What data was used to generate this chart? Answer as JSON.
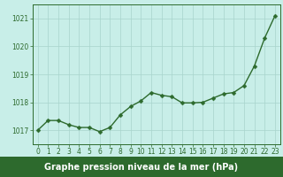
{
  "x": [
    0,
    1,
    2,
    3,
    4,
    5,
    6,
    7,
    8,
    9,
    10,
    11,
    12,
    13,
    14,
    15,
    16,
    17,
    18,
    19,
    20,
    21,
    22,
    23
  ],
  "y": [
    1017.0,
    1017.35,
    1017.35,
    1017.2,
    1017.1,
    1017.1,
    1016.95,
    1017.1,
    1017.55,
    1017.85,
    1018.05,
    1018.35,
    1018.25,
    1018.2,
    1017.98,
    1017.98,
    1018.0,
    1018.15,
    1018.3,
    1018.35,
    1018.6,
    1019.3,
    1020.3,
    1021.1
  ],
  "line_color": "#2d6a2d",
  "marker": "D",
  "marker_size": 2.5,
  "plot_bg_color": "#c8eee8",
  "fig_bg_color": "#c8eee8",
  "grid_color": "#a8d4cc",
  "label_bg_color": "#2d6a2d",
  "label_text_color": "#ffffff",
  "xlabel": "Graphe pression niveau de la mer (hPa)",
  "xlabel_fontsize": 7,
  "ylim": [
    1016.5,
    1021.5
  ],
  "yticks": [
    1017,
    1018,
    1019,
    1020,
    1021
  ],
  "xticks": [
    0,
    1,
    2,
    3,
    4,
    5,
    6,
    7,
    8,
    9,
    10,
    11,
    12,
    13,
    14,
    15,
    16,
    17,
    18,
    19,
    20,
    21,
    22,
    23
  ],
  "xtick_labels": [
    "0",
    "1",
    "2",
    "3",
    "4",
    "5",
    "6",
    "7",
    "8",
    "9",
    "10",
    "11",
    "12",
    "13",
    "14",
    "15",
    "16",
    "17",
    "18",
    "19",
    "20",
    "21",
    "22",
    "23"
  ],
  "ytick_labels": [
    "1017",
    "1018",
    "1019",
    "1020",
    "1021"
  ],
  "tick_fontsize": 5.5,
  "axis_color": "#2d6a2d",
  "line_width": 1.0
}
